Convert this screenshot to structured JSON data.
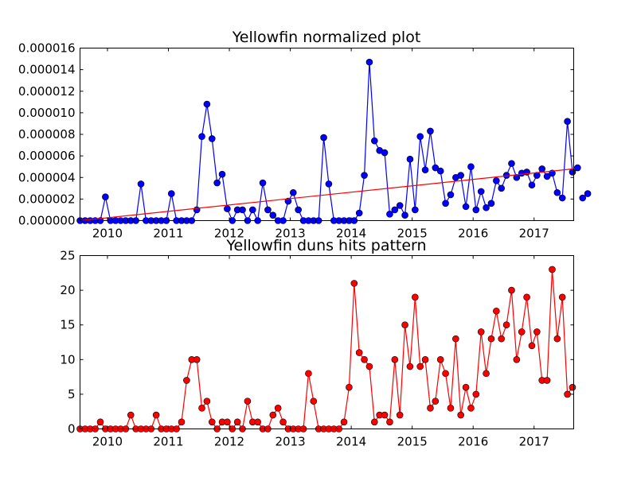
{
  "chart_data": [
    {
      "type": "line",
      "title": "Yellowfin normalized plot",
      "xlabel": "",
      "ylabel": "",
      "xlim": [
        2009.55,
        2017.65
      ],
      "ylim": [
        0,
        1.6e-05
      ],
      "grid": false,
      "x_ticks": [
        2010,
        2011,
        2012,
        2013,
        2014,
        2015,
        2016,
        2017
      ],
      "y_ticks": [
        "0.000000",
        "0.000002",
        "0.000004",
        "0.000006",
        "0.000008",
        "0.000010",
        "0.000012",
        "0.000014",
        "0.000016"
      ],
      "series": [
        {
          "color": "#0000ff",
          "marker": "circle",
          "x_start": 2009.55,
          "x_step": 0.0833,
          "values": [
            0,
            0,
            0,
            0,
            0,
            2.2e-06,
            0,
            0,
            0,
            0,
            0,
            0,
            3.4e-06,
            0,
            0,
            0,
            0,
            0,
            2.5e-06,
            0,
            0,
            0,
            0,
            1e-06,
            7.8e-06,
            1.08e-05,
            7.6e-06,
            3.5e-06,
            4.3e-06,
            1.1e-06,
            0,
            1e-06,
            1e-06,
            0,
            1e-06,
            0,
            3.5e-06,
            1e-06,
            5e-07,
            0,
            0,
            1.8e-06,
            2.6e-06,
            1e-06,
            0,
            0,
            0,
            0,
            7.7e-06,
            3.4e-06,
            0,
            0,
            0,
            0,
            0,
            7e-07,
            4.2e-06,
            1.47e-05,
            7.4e-06,
            6.5e-06,
            6.3e-06,
            6e-07,
            1e-06,
            1.4e-06,
            5e-07,
            5.7e-06,
            1e-06,
            7.8e-06,
            4.7e-06,
            8.3e-06,
            4.9e-06,
            4.6e-06,
            1.6e-06,
            2.4e-06,
            4e-06,
            4.2e-06,
            1.3e-06,
            5e-06,
            1e-06,
            2.7e-06,
            1.2e-06,
            1.6e-06,
            3.7e-06,
            3e-06,
            4.2e-06,
            5.3e-06,
            4e-06,
            4.4e-06,
            4.5e-06,
            3.3e-06,
            4.2e-06,
            4.8e-06,
            4.1e-06,
            4.4e-06,
            2.6e-06,
            2.1e-06,
            9.2e-06,
            4.5e-06,
            4.9e-06,
            2.1e-06,
            2.5e-06
          ]
        },
        {
          "color": "#ff0000",
          "marker": "none",
          "fit": "linear",
          "x": [
            2009.55,
            2017.65
          ],
          "values": [
            0,
            4.8e-06
          ]
        }
      ]
    },
    {
      "type": "line",
      "title": "Yellowfin duns hits pattern",
      "xlabel": "",
      "ylabel": "",
      "xlim": [
        2009.55,
        2017.65
      ],
      "ylim": [
        0,
        25
      ],
      "grid": false,
      "x_ticks": [
        2010,
        2011,
        2012,
        2013,
        2014,
        2015,
        2016,
        2017
      ],
      "y_ticks": [
        "0",
        "5",
        "10",
        "15",
        "20",
        "25"
      ],
      "series": [
        {
          "color": "#ff0000",
          "marker": "circle",
          "x_start": 2009.55,
          "x_step": 0.0833,
          "values": [
            0,
            0,
            0,
            0,
            1,
            0,
            0,
            0,
            0,
            0,
            2,
            0,
            0,
            0,
            0,
            2,
            0,
            0,
            0,
            0,
            1,
            7,
            10,
            10,
            3,
            4,
            1,
            0,
            1,
            1,
            0,
            1,
            0,
            4,
            1,
            1,
            0,
            0,
            2,
            3,
            1,
            0,
            0,
            0,
            0,
            8,
            4,
            0,
            0,
            0,
            0,
            0,
            1,
            6,
            21,
            11,
            10,
            9,
            1,
            2,
            2,
            1,
            10,
            2,
            15,
            9,
            19,
            9,
            10,
            3,
            4,
            10,
            8,
            3,
            13,
            2,
            6,
            3,
            5,
            14,
            8,
            13,
            17,
            13,
            15,
            20,
            10,
            14,
            19,
            12,
            14,
            7,
            7,
            23,
            13,
            19,
            5,
            6
          ]
        }
      ]
    }
  ]
}
